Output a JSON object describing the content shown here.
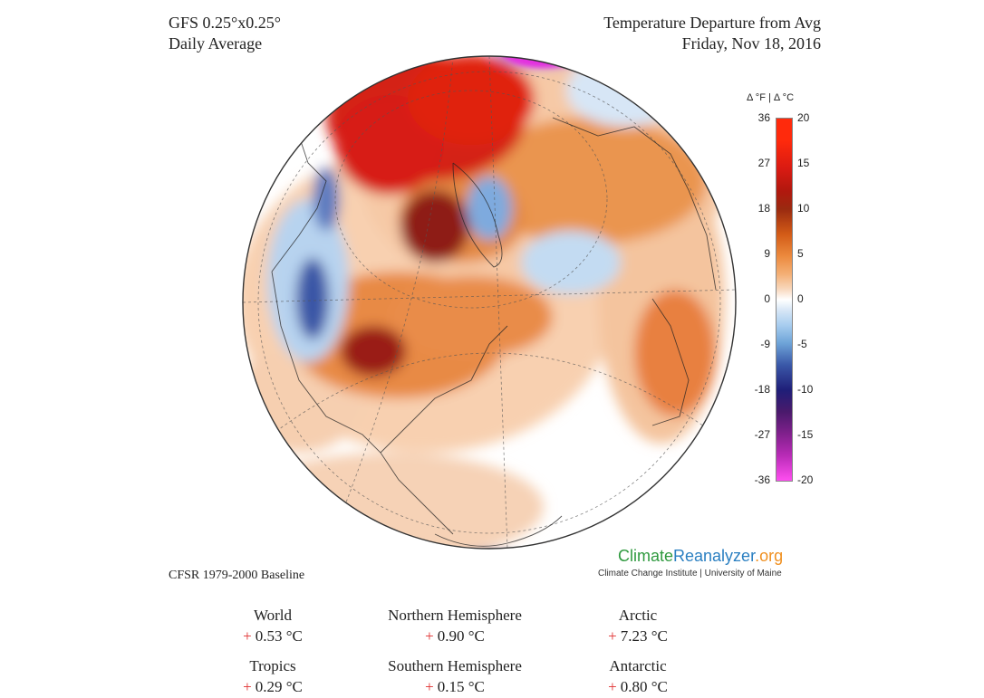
{
  "header": {
    "model": "GFS 0.25°x0.25°",
    "period": "Daily Average",
    "title": "Temperature Departure from Avg",
    "date": "Friday, Nov 18, 2016"
  },
  "colorbar": {
    "heading": "Δ °F  |  Δ °C",
    "fahrenheit": [
      "36",
      "27",
      "18",
      "9",
      "0",
      "-9",
      "-18",
      "-27",
      "-36"
    ],
    "celsius": [
      "20",
      "15",
      "10",
      "5",
      "0",
      "-5",
      "-10",
      "-15",
      "-20"
    ],
    "colors": {
      "hot": "#ff2a0c",
      "dark_red": "#b1180e",
      "orange": "#ec8a3e",
      "light_orange": "#f8d7bb",
      "neutral": "#ffffff",
      "light_blue": "#a8cdef",
      "navy": "#1f1e78",
      "purple": "#80208c",
      "magenta": "#ff4ef0"
    }
  },
  "baseline": "CFSR 1979-2000 Baseline",
  "brand": {
    "part1": "Climate",
    "part2": "Reanalyzer",
    "part3": ".org",
    "subtitle": "Climate Change Institute | University of Maine"
  },
  "stats": [
    {
      "region": "World",
      "sign": "+",
      "value": "0.53 °C"
    },
    {
      "region": "Northern Hemisphere",
      "sign": "+",
      "value": "0.90 °C"
    },
    {
      "region": "Arctic",
      "sign": "+",
      "value": "7.23 °C"
    },
    {
      "region": "Tropics",
      "sign": "+",
      "value": "0.29 °C"
    },
    {
      "region": "Southern Hemisphere",
      "sign": "+",
      "value": "0.15 °C"
    },
    {
      "region": "Antarctic",
      "sign": "+",
      "value": "0.80 °C"
    }
  ]
}
